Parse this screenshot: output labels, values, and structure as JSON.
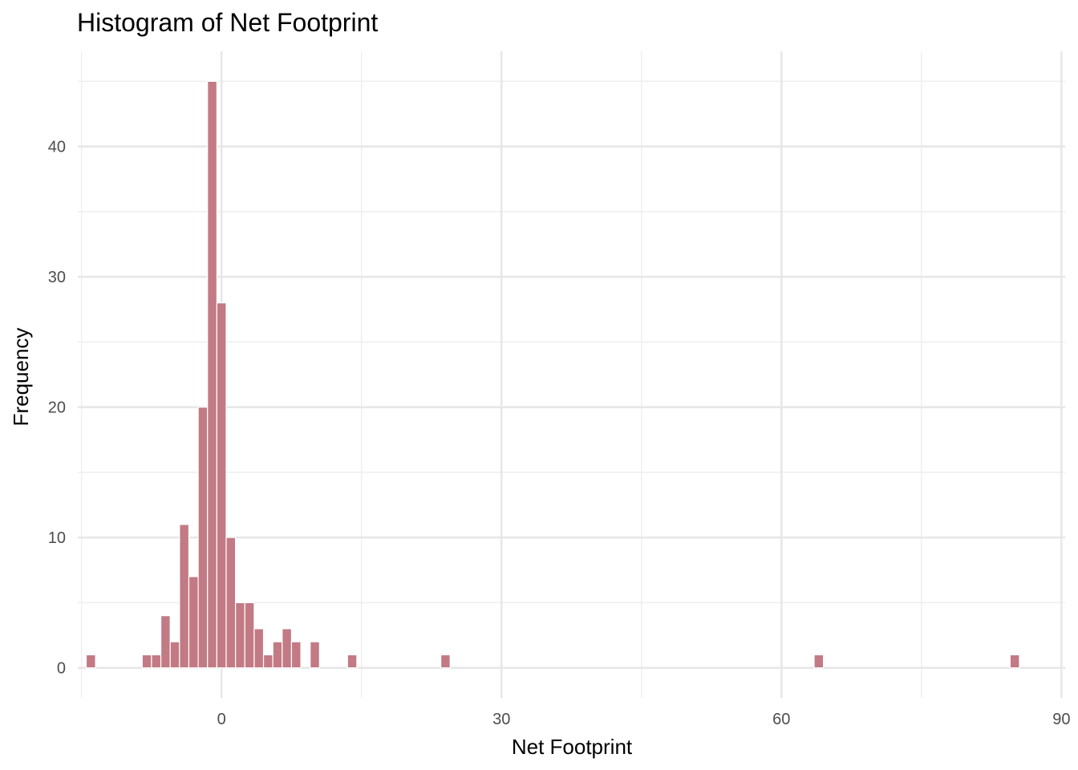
{
  "chart_data": {
    "type": "histogram",
    "title": "Histogram of Net Footprint",
    "xlabel": "Net Footprint",
    "ylabel": "Frequency",
    "bin_width": 1,
    "x_range": [
      -15.4,
      90.4
    ],
    "y_range": [
      -2.3,
      47.3
    ],
    "x_ticks": [
      0,
      30,
      60,
      90
    ],
    "x_tick_labels": [
      "0",
      "30",
      "60",
      "90"
    ],
    "x_minor_ticks": [
      -15,
      15,
      45,
      75
    ],
    "y_ticks": [
      0,
      10,
      20,
      30,
      40
    ],
    "y_tick_labels": [
      "0",
      "10",
      "20",
      "30",
      "40"
    ],
    "y_minor_ticks": [
      5,
      15,
      25,
      35,
      45
    ],
    "bar_color": "#c27a85",
    "bar_edge_color": "#ffffff",
    "bins": [
      {
        "x": -14,
        "count": 1
      },
      {
        "x": -8,
        "count": 1
      },
      {
        "x": -7,
        "count": 1
      },
      {
        "x": -6,
        "count": 4
      },
      {
        "x": -5,
        "count": 2
      },
      {
        "x": -4,
        "count": 11
      },
      {
        "x": -3,
        "count": 7
      },
      {
        "x": -2,
        "count": 20
      },
      {
        "x": -1,
        "count": 45
      },
      {
        "x": 0,
        "count": 28
      },
      {
        "x": 1,
        "count": 10
      },
      {
        "x": 2,
        "count": 5
      },
      {
        "x": 3,
        "count": 5
      },
      {
        "x": 4,
        "count": 3
      },
      {
        "x": 5,
        "count": 1
      },
      {
        "x": 6,
        "count": 2
      },
      {
        "x": 7,
        "count": 3
      },
      {
        "x": 8,
        "count": 2
      },
      {
        "x": 10,
        "count": 2
      },
      {
        "x": 14,
        "count": 1
      },
      {
        "x": 24,
        "count": 1
      },
      {
        "x": 64,
        "count": 1
      },
      {
        "x": 85,
        "count": 1
      }
    ],
    "grid": true,
    "legend": "none"
  }
}
